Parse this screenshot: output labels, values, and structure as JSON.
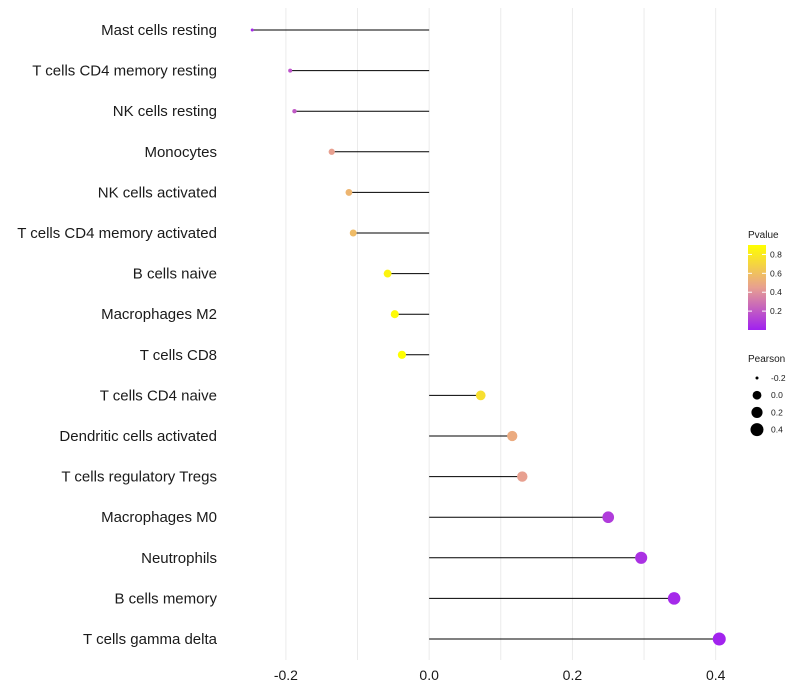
{
  "chart_data": {
    "type": "lollipop",
    "title": "",
    "xlabel": "",
    "ylabel": "",
    "xlim": [
      -0.285,
      0.42
    ],
    "x_ticks": [
      -0.2,
      0.0,
      0.2,
      0.4
    ],
    "x_tick_labels": [
      "-0.2",
      "0.0",
      "0.2",
      "0.4"
    ],
    "gridlines": [
      -0.2,
      -0.1,
      0.0,
      0.1,
      0.2,
      0.3,
      0.4
    ],
    "baseline": 0.0,
    "categories": [
      "Mast cells resting",
      "T cells CD4 memory resting",
      "NK cells resting",
      "Monocytes",
      "NK cells activated",
      "T cells CD4 memory activated",
      "B cells naive",
      "Macrophages M2",
      "T cells CD8",
      "T cells CD4 naive",
      "Dendritic cells activated",
      "T cells regulatory  Tregs ",
      "Macrophages M0",
      "Neutrophils",
      "B cells memory",
      "T cells gamma delta"
    ],
    "pearson": [
      -0.247,
      -0.194,
      -0.188,
      -0.136,
      -0.112,
      -0.106,
      -0.058,
      -0.048,
      -0.038,
      0.072,
      0.116,
      0.13,
      0.25,
      0.296,
      0.342,
      0.405
    ],
    "pvalue": [
      0.03,
      0.18,
      0.2,
      0.45,
      0.55,
      0.58,
      0.85,
      0.88,
      0.9,
      0.75,
      0.5,
      0.45,
      0.1,
      0.06,
      0.03,
      0.01
    ],
    "legend_color": {
      "title": "Pvalue",
      "ticks": [
        0.8,
        0.6,
        0.4,
        0.2
      ],
      "tick_labels": [
        "0.8",
        "0.6",
        "0.4",
        "0.2"
      ],
      "range": [
        0.0,
        0.9
      ],
      "low_color": "#a020f0",
      "mid_color": "#e8a090",
      "high_color": "#ffff00",
      "placement": "right"
    },
    "legend_size": {
      "title": "Pearson",
      "values": [
        -0.2,
        0.0,
        0.2,
        0.4
      ],
      "labels": [
        "-0.2",
        "0.0",
        "0.2",
        "0.4"
      ],
      "placement": "right"
    }
  }
}
